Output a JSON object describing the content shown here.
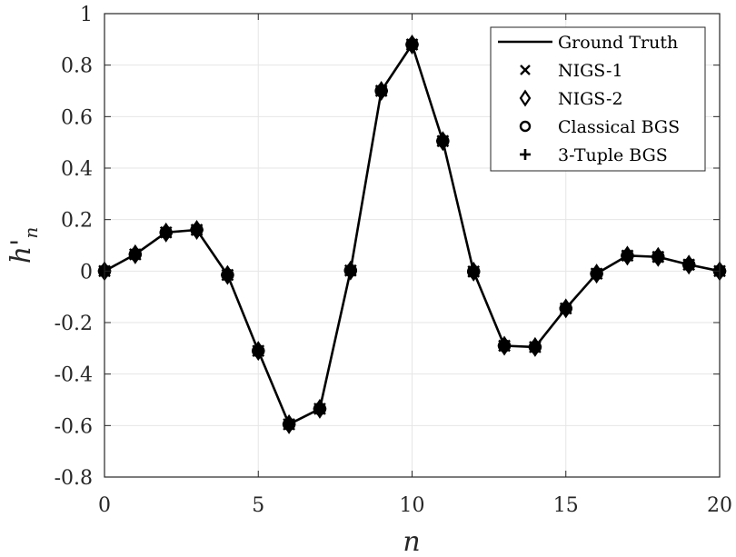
{
  "chart_data": {
    "type": "line",
    "title": "",
    "xlabel": "n",
    "ylabel": "h'",
    "ylabel_subscript": "n",
    "xlim": [
      0,
      20
    ],
    "ylim": [
      -0.8,
      1
    ],
    "xticks": [
      0,
      5,
      10,
      15,
      20
    ],
    "xtick_labels": [
      "0",
      "5",
      "10",
      "15",
      "20"
    ],
    "yticks": [
      -0.8,
      -0.6,
      -0.4,
      -0.2,
      0,
      0.2,
      0.4,
      0.6,
      0.8,
      1
    ],
    "ytick_labels": [
      "-0.8",
      "-0.6",
      "-0.4",
      "-0.2",
      "0",
      "0.2",
      "0.4",
      "0.6",
      "0.8",
      "1"
    ],
    "grid": true,
    "legend_position": "top-right",
    "x": [
      0,
      1,
      2,
      3,
      4,
      5,
      6,
      7,
      8,
      9,
      10,
      11,
      12,
      13,
      14,
      15,
      16,
      17,
      18,
      19,
      20
    ],
    "series": [
      {
        "name": "Ground Truth",
        "marker": "line",
        "values": [
          0,
          0.065,
          0.15,
          0.16,
          -0.015,
          -0.31,
          -0.595,
          -0.535,
          0.002,
          0.7,
          0.88,
          0.505,
          -0.002,
          -0.29,
          -0.295,
          -0.145,
          -0.01,
          0.06,
          0.055,
          0.025,
          0
        ]
      },
      {
        "name": "NIGS-1",
        "marker": "x",
        "values": [
          0,
          0.065,
          0.15,
          0.16,
          -0.015,
          -0.31,
          -0.595,
          -0.535,
          0.002,
          0.7,
          0.88,
          0.505,
          -0.002,
          -0.29,
          -0.295,
          -0.145,
          -0.01,
          0.06,
          0.055,
          0.025,
          0
        ]
      },
      {
        "name": "NIGS-2",
        "marker": "diamond",
        "values": [
          0,
          0.065,
          0.15,
          0.16,
          -0.015,
          -0.31,
          -0.595,
          -0.535,
          0.002,
          0.7,
          0.88,
          0.505,
          -0.002,
          -0.29,
          -0.295,
          -0.145,
          -0.01,
          0.06,
          0.055,
          0.025,
          0
        ]
      },
      {
        "name": "Classical BGS",
        "marker": "circle",
        "values": [
          0,
          0.065,
          0.15,
          0.16,
          -0.015,
          -0.31,
          -0.595,
          -0.535,
          0.002,
          0.7,
          0.88,
          0.505,
          -0.002,
          -0.29,
          -0.295,
          -0.145,
          -0.01,
          0.06,
          0.055,
          0.025,
          0
        ]
      },
      {
        "name": "3-Tuple BGS",
        "marker": "plus",
        "values": [
          0,
          0.065,
          0.15,
          0.16,
          -0.015,
          -0.31,
          -0.595,
          -0.535,
          0.002,
          0.7,
          0.88,
          0.505,
          -0.002,
          -0.29,
          -0.295,
          -0.145,
          -0.01,
          0.06,
          0.055,
          0.025,
          0
        ]
      }
    ],
    "colors": {
      "line": "#000000",
      "grid": "#e6e6e6",
      "axis": "#262626"
    }
  }
}
